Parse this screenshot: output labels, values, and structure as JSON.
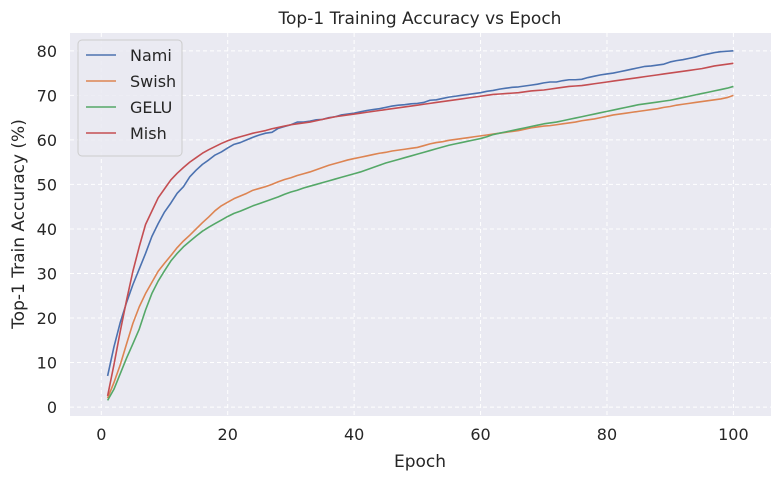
{
  "chart_data": {
    "type": "line",
    "title": "Top-1 Training Accuracy vs Epoch",
    "xlabel": "Epoch",
    "ylabel": "Top-1 Train Accuracy (%)",
    "xlim": [
      -4.95,
      105.95
    ],
    "ylim": [
      -2,
      84
    ],
    "xticks": [
      0,
      20,
      40,
      60,
      80,
      100
    ],
    "yticks": [
      0,
      10,
      20,
      30,
      40,
      50,
      60,
      70,
      80
    ],
    "grid": true,
    "legend_position": "upper-left",
    "x": {
      "start": 1,
      "end": 100,
      "step": 1
    },
    "series": [
      {
        "name": "Nami",
        "color": "#4c72b0",
        "values": [
          7,
          13.5,
          19,
          23.5,
          27.5,
          31,
          34.5,
          38.3,
          41.2,
          43.8,
          45.8,
          48,
          49.5,
          51.7,
          53.2,
          54.5,
          55.5,
          56.6,
          57.3,
          58.2,
          59,
          59.4,
          60,
          60.6,
          61.1,
          61.5,
          61.7,
          62.6,
          63,
          63.4,
          64,
          64,
          64.2,
          64.5,
          64.6,
          65,
          65.2,
          65.6,
          65.8,
          66,
          66.3,
          66.6,
          66.8,
          67,
          67.3,
          67.6,
          67.8,
          67.9,
          68.1,
          68.2,
          68.4,
          68.9,
          69,
          69.3,
          69.6,
          69.8,
          70,
          70.2,
          70.4,
          70.6,
          70.9,
          71.1,
          71.4,
          71.6,
          71.8,
          71.9,
          72.1,
          72.3,
          72.5,
          72.8,
          73,
          73,
          73.3,
          73.5,
          73.5,
          73.6,
          74,
          74.3,
          74.6,
          74.8,
          75,
          75.3,
          75.6,
          75.9,
          76.2,
          76.5,
          76.6,
          76.8,
          77,
          77.5,
          77.8,
          78,
          78.3,
          78.6,
          79,
          79.3,
          79.6,
          79.8,
          79.9,
          80
        ]
      },
      {
        "name": "Swish",
        "color": "#dd8452",
        "values": [
          2,
          5.5,
          9.5,
          14.2,
          18.8,
          22.5,
          25.5,
          28,
          30.5,
          32.3,
          34,
          35.8,
          37.3,
          38.6,
          40,
          41.4,
          42.7,
          44.1,
          45.2,
          46,
          46.8,
          47.4,
          48,
          48.7,
          49.1,
          49.5,
          50,
          50.6,
          51.1,
          51.5,
          52,
          52.4,
          52.8,
          53.3,
          53.8,
          54.3,
          54.7,
          55.1,
          55.5,
          55.8,
          56.1,
          56.4,
          56.7,
          57,
          57.2,
          57.5,
          57.7,
          57.9,
          58.1,
          58.3,
          58.7,
          59.1,
          59.4,
          59.6,
          59.9,
          60.1,
          60.3,
          60.5,
          60.7,
          60.9,
          61.1,
          61.3,
          61.5,
          61.7,
          61.9,
          62.1,
          62.4,
          62.7,
          62.9,
          63.1,
          63.2,
          63.4,
          63.6,
          63.8,
          64,
          64.3,
          64.5,
          64.7,
          65,
          65.3,
          65.6,
          65.8,
          66,
          66.2,
          66.4,
          66.6,
          66.8,
          67,
          67.3,
          67.5,
          67.8,
          68,
          68.2,
          68.4,
          68.6,
          68.8,
          69,
          69.2,
          69.5,
          70
        ]
      },
      {
        "name": "GELU",
        "color": "#55a868",
        "values": [
          1.5,
          4,
          7.5,
          11,
          14.2,
          17.5,
          21.8,
          25.5,
          28.3,
          30.6,
          32.8,
          34.5,
          36,
          37.2,
          38.4,
          39.5,
          40.4,
          41.2,
          42,
          42.8,
          43.5,
          44,
          44.6,
          45.2,
          45.7,
          46.2,
          46.7,
          47.2,
          47.8,
          48.3,
          48.7,
          49.2,
          49.6,
          50,
          50.4,
          50.8,
          51.2,
          51.6,
          52,
          52.4,
          52.8,
          53.3,
          53.8,
          54.3,
          54.8,
          55.2,
          55.6,
          56,
          56.4,
          56.8,
          57.2,
          57.6,
          58,
          58.4,
          58.8,
          59.1,
          59.4,
          59.7,
          60,
          60.3,
          60.7,
          61.2,
          61.5,
          61.8,
          62.1,
          62.4,
          62.7,
          63,
          63.3,
          63.6,
          63.8,
          64,
          64.3,
          64.6,
          64.9,
          65.2,
          65.5,
          65.8,
          66.1,
          66.4,
          66.7,
          67,
          67.3,
          67.6,
          67.9,
          68.1,
          68.3,
          68.5,
          68.7,
          68.9,
          69.2,
          69.5,
          69.8,
          70.1,
          70.4,
          70.7,
          71,
          71.3,
          71.6,
          72
        ]
      },
      {
        "name": "Mish",
        "color": "#c44e52",
        "values": [
          2.5,
          9.5,
          17,
          24,
          30.5,
          36,
          41,
          44,
          47,
          49,
          51,
          52.5,
          53.8,
          55,
          56,
          57,
          57.8,
          58.5,
          59.2,
          59.8,
          60.3,
          60.7,
          61.1,
          61.5,
          61.8,
          62.1,
          62.5,
          62.8,
          63.1,
          63.4,
          63.6,
          63.8,
          64,
          64.3,
          64.6,
          64.9,
          65.2,
          65.4,
          65.6,
          65.8,
          66,
          66.2,
          66.4,
          66.6,
          66.8,
          67,
          67.2,
          67.4,
          67.6,
          67.8,
          68,
          68.2,
          68.4,
          68.6,
          68.8,
          69,
          69.2,
          69.4,
          69.6,
          69.8,
          70,
          70.2,
          70.3,
          70.4,
          70.5,
          70.6,
          70.8,
          71,
          71.1,
          71.2,
          71.4,
          71.6,
          71.8,
          72,
          72.1,
          72.2,
          72.4,
          72.6,
          72.8,
          73,
          73.2,
          73.4,
          73.6,
          73.8,
          74,
          74.2,
          74.4,
          74.6,
          74.8,
          75,
          75.2,
          75.4,
          75.6,
          75.8,
          76,
          76.3,
          76.6,
          76.8,
          77,
          77.2
        ]
      }
    ]
  }
}
